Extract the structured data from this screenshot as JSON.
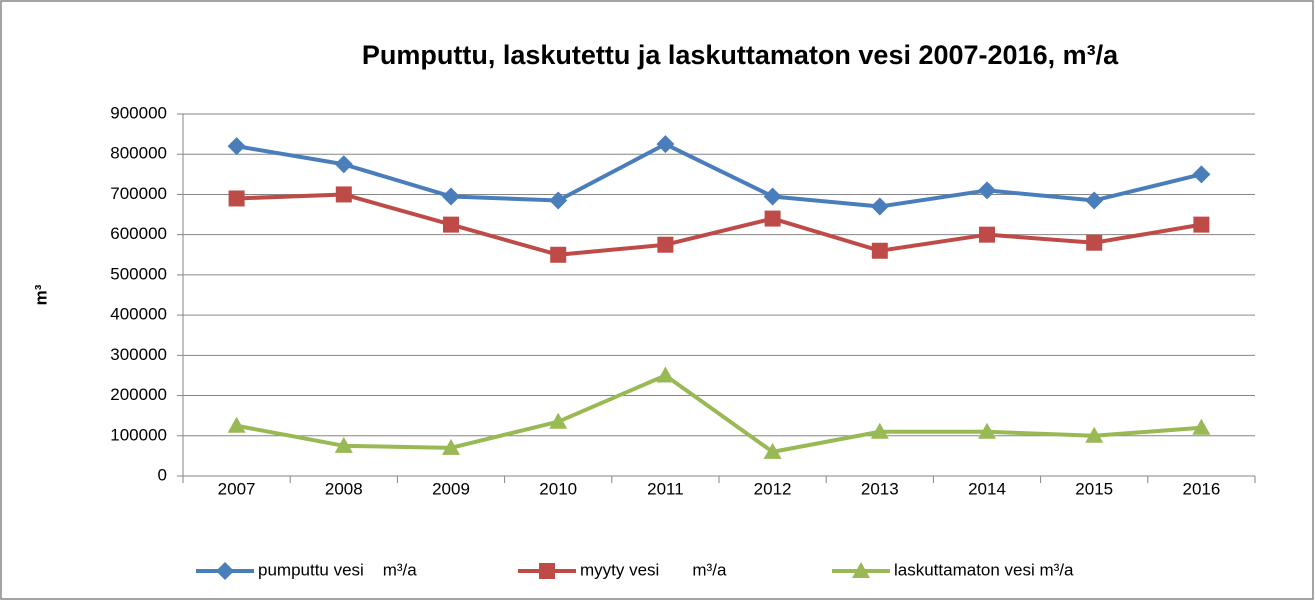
{
  "chart_data": {
    "type": "line",
    "title": "Pumputtu, laskutettu ja laskuttamaton vesi 2007-2016, m³/a",
    "y_label": "m³",
    "categories": [
      "2007",
      "2008",
      "2009",
      "2010",
      "2011",
      "2012",
      "2013",
      "2014",
      "2015",
      "2016"
    ],
    "series": [
      {
        "name": "pumputtu vesi    m³/a",
        "color": "#4a7ebb",
        "marker": "diamond",
        "values": [
          820000,
          775000,
          695000,
          685000,
          825000,
          695000,
          670000,
          710000,
          685000,
          750000
        ]
      },
      {
        "name": "myyty vesi       m³/a",
        "color": "#be4b48",
        "marker": "square",
        "values": [
          690000,
          700000,
          625000,
          550000,
          575000,
          640000,
          560000,
          600000,
          580000,
          625000
        ]
      },
      {
        "name": "laskuttamaton vesi m³/a",
        "color": "#98b954",
        "marker": "triangle",
        "values": [
          125000,
          75000,
          70000,
          135000,
          250000,
          60000,
          110000,
          110000,
          100000,
          120000
        ]
      }
    ],
    "ylim": [
      0,
      900000
    ],
    "yticks": [
      0,
      100000,
      200000,
      300000,
      400000,
      500000,
      600000,
      700000,
      800000,
      900000
    ],
    "grid": true,
    "legend": "bottom"
  }
}
